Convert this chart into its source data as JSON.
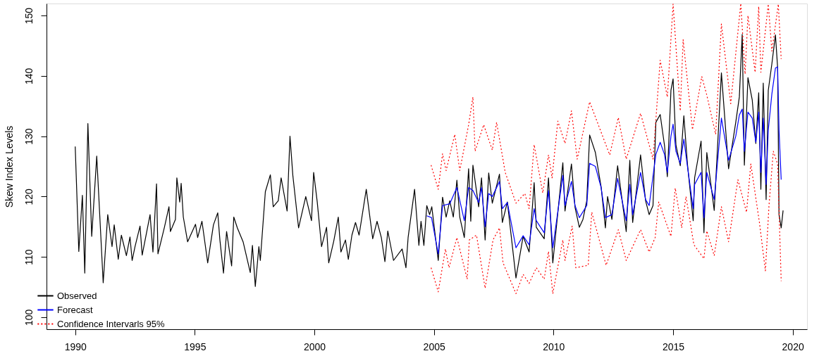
{
  "chart_data": {
    "type": "line",
    "ylabel": "Skew Index Levels",
    "xlim": [
      1988.8,
      2020.6
    ],
    "xticks": [
      1990,
      1995,
      2000,
      2005,
      2010,
      2015,
      2020
    ],
    "ylim": [
      98,
      152
    ],
    "yticks": [
      100,
      110,
      120,
      130,
      140,
      150
    ],
    "grid": false,
    "legend": "bottom left",
    "marker": "none",
    "series": [
      {
        "name": "Observed",
        "color": "#000000",
        "line_style": "solid",
        "x": [
          1990.0,
          1990.15,
          1990.3,
          1990.4,
          1990.53,
          1990.69,
          1990.9,
          1991.17,
          1991.36,
          1991.54,
          1991.63,
          1991.8,
          1991.93,
          1992.14,
          1992.29,
          1992.38,
          1992.5,
          1992.71,
          1992.8,
          1993.13,
          1993.25,
          1993.4,
          1993.46,
          1993.73,
          1993.92,
          1993.98,
          1994.19,
          1994.25,
          1994.37,
          1994.43,
          1994.52,
          1994.7,
          1995.03,
          1995.12,
          1995.3,
          1995.54,
          1995.78,
          1995.96,
          1996.05,
          1996.2,
          1996.33,
          1996.54,
          1996.63,
          1996.78,
          1997.02,
          1997.32,
          1997.41,
          1997.53,
          1997.68,
          1997.74,
          1997.95,
          1998.16,
          1998.28,
          1998.49,
          1998.61,
          1998.86,
          1998.98,
          1999.1,
          1999.34,
          1999.64,
          1999.88,
          1999.97,
          2000.12,
          2000.3,
          2000.51,
          2000.6,
          2000.81,
          2001.0,
          2001.11,
          2001.3,
          2001.42,
          2001.57,
          2001.72,
          2001.87,
          2002.17,
          2002.44,
          2002.62,
          2002.8,
          2002.95,
          2003.07,
          2003.31,
          2003.67,
          2003.83,
          2003.92,
          2004.19,
          2004.37,
          2004.46,
          2004.58,
          2004.7,
          2004.82,
          2004.91,
          2005.18,
          2005.36,
          2005.51,
          2005.66,
          2005.81,
          2005.96,
          2006.08,
          2006.27,
          2006.45,
          2006.54,
          2006.63,
          2006.87,
          2006.99,
          2007.14,
          2007.29,
          2007.44,
          2007.74,
          2007.86,
          2008.07,
          2008.43,
          2008.73,
          2008.98,
          2009.19,
          2009.28,
          2009.61,
          2009.79,
          2009.97,
          2010.39,
          2010.48,
          2010.75,
          2010.9,
          2011.08,
          2011.23,
          2011.39,
          2011.51,
          2011.75,
          2011.99,
          2012.17,
          2012.26,
          2012.44,
          2012.68,
          2013.04,
          2013.19,
          2013.31,
          2013.64,
          2013.85,
          2014.0,
          2014.16,
          2014.28,
          2014.46,
          2014.64,
          2014.76,
          2014.91,
          2015.0,
          2015.12,
          2015.3,
          2015.45,
          2015.6,
          2015.84,
          2015.9,
          2016.17,
          2016.29,
          2016.41,
          2016.72,
          2017.02,
          2017.32,
          2017.62,
          2017.77,
          2017.89,
          2017.98,
          2018.13,
          2018.31,
          2018.46,
          2018.58,
          2018.67,
          2018.77,
          2018.89,
          2018.98,
          2019.13,
          2019.28,
          2019.37,
          2019.43,
          2019.52,
          2019.6
        ],
        "values": [
          128.3,
          110.9,
          120.2,
          107.3,
          132.1,
          113.4,
          126.7,
          105.7,
          117.0,
          111.7,
          115.3,
          109.6,
          113.6,
          110.2,
          113.3,
          109.4,
          111.7,
          115.1,
          110.3,
          117.0,
          110.8,
          122.1,
          110.5,
          114.9,
          118.3,
          114.2,
          116.2,
          123.1,
          119.1,
          122.2,
          116.6,
          112.5,
          115.4,
          113.2,
          115.9,
          109.0,
          115.3,
          117.3,
          112.8,
          107.3,
          114.2,
          108.5,
          116.6,
          114.8,
          112.5,
          107.4,
          111.9,
          105.1,
          111.7,
          109.4,
          120.8,
          123.6,
          118.3,
          119.3,
          123.1,
          117.6,
          130.0,
          123.5,
          114.8,
          120.0,
          116.0,
          124.0,
          119.1,
          111.7,
          114.9,
          109.0,
          112.6,
          116.6,
          110.8,
          112.8,
          109.6,
          113.6,
          115.7,
          113.6,
          121.2,
          113.0,
          115.9,
          113.2,
          109.2,
          114.3,
          109.4,
          111.3,
          108.2,
          113.2,
          121.2,
          111.9,
          115.9,
          111.9,
          118.5,
          117.0,
          118.3,
          109.4,
          119.9,
          116.6,
          119.3,
          116.6,
          122.7,
          116.6,
          113.2,
          124.6,
          115.9,
          125.2,
          118.3,
          123.1,
          112.8,
          123.9,
          118.9,
          123.7,
          115.7,
          119.1,
          106.5,
          113.4,
          110.8,
          122.3,
          114.9,
          113.0,
          123.1,
          109.0,
          125.6,
          117.6,
          125.4,
          118.2,
          114.9,
          116.2,
          119.3,
          130.2,
          127.3,
          121.6,
          114.8,
          120.0,
          116.2,
          125.1,
          114.2,
          126.0,
          115.7,
          126.9,
          119.3,
          117.0,
          118.5,
          132.3,
          133.6,
          128.5,
          123.3,
          137.6,
          139.5,
          128.5,
          125.1,
          133.4,
          125.4,
          116.0,
          123.1,
          129.2,
          114.0,
          127.3,
          117.7,
          140.5,
          124.6,
          132.3,
          136.5,
          146.9,
          125.2,
          139.7,
          136.0,
          128.8,
          137.2,
          121.2,
          138.8,
          119.5,
          137.6,
          142.0,
          146.8,
          141.4,
          117.0,
          114.8,
          117.7
        ]
      },
      {
        "name": "Forecast",
        "color": "#0000ff",
        "line_style": "solid",
        "x": [
          2004.7,
          2004.9,
          2005.18,
          2005.36,
          2005.66,
          2005.96,
          2006.27,
          2006.45,
          2006.63,
          2006.87,
          2006.99,
          2007.14,
          2007.29,
          2007.44,
          2007.74,
          2007.86,
          2008.07,
          2008.43,
          2008.73,
          2008.98,
          2009.19,
          2009.28,
          2009.61,
          2009.79,
          2009.97,
          2010.39,
          2010.48,
          2010.75,
          2010.9,
          2011.08,
          2011.39,
          2011.51,
          2011.75,
          2011.99,
          2012.17,
          2012.44,
          2012.68,
          2013.04,
          2013.19,
          2013.31,
          2013.64,
          2013.85,
          2014.0,
          2014.28,
          2014.46,
          2014.64,
          2014.76,
          2014.91,
          2015.0,
          2015.12,
          2015.3,
          2015.45,
          2015.6,
          2015.84,
          2015.9,
          2016.17,
          2016.29,
          2016.41,
          2016.72,
          2017.02,
          2017.32,
          2017.62,
          2017.77,
          2017.89,
          2017.98,
          2018.13,
          2018.31,
          2018.46,
          2018.58,
          2018.67,
          2018.77,
          2018.89,
          2018.98,
          2019.13,
          2019.28,
          2019.37,
          2019.43,
          2019.52
        ],
        "values": [
          116.8,
          116.5,
          110.5,
          118.5,
          118.8,
          121.5,
          116.0,
          121.5,
          121.0,
          119.0,
          121.5,
          115.0,
          120.5,
          120.0,
          122.5,
          118.0,
          119.0,
          111.5,
          113.5,
          112.0,
          118.0,
          116.0,
          114.0,
          121.0,
          111.5,
          123.5,
          118.5,
          122.5,
          118.5,
          116.5,
          118.5,
          125.5,
          125.0,
          121.5,
          116.5,
          117.0,
          123.0,
          116.0,
          122.0,
          117.0,
          124.0,
          119.5,
          118.5,
          127.0,
          129.0,
          127.0,
          124.0,
          130.0,
          132.0,
          127.5,
          125.5,
          129.5,
          125.0,
          118.0,
          122.0,
          124.0,
          116.5,
          124.0,
          119.5,
          133.0,
          126.0,
          130.0,
          133.5,
          134.5,
          127.5,
          134.0,
          133.0,
          129.0,
          134.0,
          124.0,
          133.0,
          122.0,
          131.0,
          137.0,
          141.3,
          141.5,
          131.0,
          122.8
        ]
      },
      {
        "name": "Confidence Intervarls 95%",
        "color": "#ff0000",
        "line_style": "dotted",
        "x": [
          2004.88,
          2005.18,
          2005.36,
          2005.51,
          2005.87,
          2006.08,
          2006.45,
          2006.63,
          2006.72,
          2007.08,
          2007.44,
          2007.62,
          2007.98,
          2008.43,
          2008.8,
          2008.98,
          2009.19,
          2009.55,
          2009.79,
          2009.94,
          2010.18,
          2010.48,
          2010.75,
          2010.99,
          2011.51,
          2012.35,
          2012.71,
          2013.04,
          2013.64,
          2014.16,
          2014.46,
          2014.76,
          2015.0,
          2015.3,
          2015.42,
          2015.81,
          2016.2,
          2016.41,
          2016.78,
          2017.02,
          2017.41,
          2017.83,
          2018.01,
          2018.13,
          2018.43,
          2018.58,
          2018.67,
          2018.98,
          2019.13,
          2019.4,
          2019.52
        ],
        "values": [
          125.2,
          121.2,
          127.1,
          124.3,
          130.3,
          124.3,
          131.9,
          136.5,
          127.5,
          131.9,
          127.7,
          132.3,
          124.0,
          118.9,
          120.5,
          118.0,
          128.6,
          120.6,
          126.9,
          123.1,
          132.5,
          128.8,
          134.2,
          126.2,
          135.7,
          126.9,
          133.1,
          126.2,
          133.8,
          126.2,
          142.6,
          136.5,
          151.9,
          134.2,
          146.0,
          131.1,
          139.9,
          136.8,
          130.3,
          148.6,
          135.4,
          152.0,
          140.3,
          150.0,
          140.6,
          151.5,
          140.6,
          151.9,
          144.1,
          151.9,
          142.8
        ]
      },
      {
        "color": "#ff0000",
        "line_style": "dotted",
        "x": [
          2004.88,
          2005.18,
          2005.48,
          2005.63,
          2005.96,
          2006.39,
          2006.48,
          2006.78,
          2007.14,
          2007.47,
          2007.74,
          2007.89,
          2008.43,
          2008.73,
          2008.98,
          2009.28,
          2009.61,
          2009.79,
          2009.97,
          2010.39,
          2010.48,
          2010.78,
          2010.93,
          2011.45,
          2011.6,
          2012.2,
          2012.71,
          2013.04,
          2013.64,
          2014.0,
          2014.25,
          2014.4,
          2014.91,
          2015.09,
          2015.36,
          2015.54,
          2015.87,
          2016.29,
          2016.41,
          2016.72,
          2017.02,
          2017.32,
          2017.71,
          2018.07,
          2018.25,
          2018.61,
          2018.86,
          2019.01,
          2019.19,
          2019.37,
          2019.52
        ],
        "values": [
          108.2,
          104.2,
          111.3,
          108.2,
          113.2,
          106.3,
          112.8,
          113.6,
          104.8,
          112.8,
          114.8,
          109.0,
          103.9,
          107.1,
          105.6,
          108.2,
          106.3,
          110.9,
          103.9,
          112.8,
          109.4,
          115.1,
          108.2,
          108.6,
          117.4,
          108.6,
          114.5,
          109.4,
          114.5,
          110.8,
          113.2,
          119.1,
          113.4,
          121.4,
          114.8,
          120.0,
          112.0,
          109.7,
          114.3,
          110.2,
          118.3,
          112.5,
          122.8,
          117.4,
          125.4,
          115.7,
          107.7,
          118.5,
          127.5,
          125.4,
          106.0
        ]
      }
    ]
  }
}
